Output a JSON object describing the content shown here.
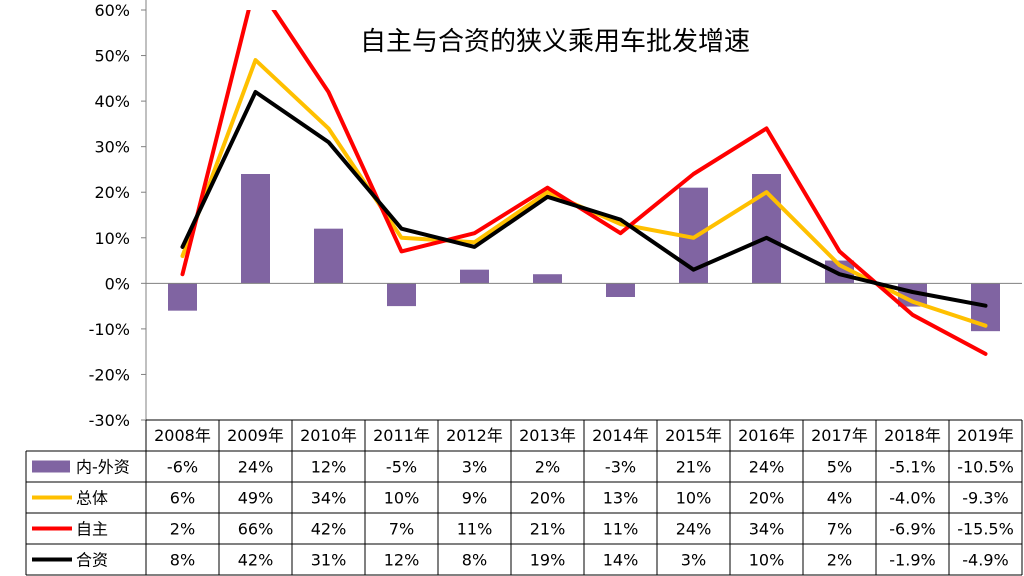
{
  "chart_data": {
    "type": "bar+line",
    "title": "自主与合资的狭义乘用车批发增速",
    "categories": [
      "2008年",
      "2009年",
      "2010年",
      "2011年",
      "2012年",
      "2013年",
      "2014年",
      "2015年",
      "2016年",
      "2017年",
      "2018年",
      "2019年"
    ],
    "ylim": [
      -30,
      60
    ],
    "yticks": [
      60,
      50,
      40,
      30,
      20,
      10,
      0,
      -10,
      -20,
      -30
    ],
    "ytick_labels": [
      "60%",
      "50%",
      "40%",
      "30%",
      "20%",
      "10%",
      "0%",
      "-10%",
      "-20%",
      "-30%"
    ],
    "grid": false,
    "legend_placement": "data-table",
    "series": [
      {
        "name": "内-外资",
        "kind": "bar",
        "color": "#8064A2",
        "values": [
          -6,
          24,
          12,
          -5,
          3,
          2,
          -3,
          21,
          24,
          5,
          -5.1,
          -10.5
        ],
        "labels": [
          "-6%",
          "24%",
          "12%",
          "-5%",
          "3%",
          "2%",
          "-3%",
          "21%",
          "24%",
          "5%",
          "-5.1%",
          "-10.5%"
        ]
      },
      {
        "name": "总体",
        "kind": "line",
        "color": "#FFC000",
        "values": [
          6,
          49,
          34,
          10,
          9,
          20,
          13,
          10,
          20,
          4,
          -4.0,
          -9.3
        ],
        "labels": [
          "6%",
          "49%",
          "34%",
          "10%",
          "9%",
          "20%",
          "13%",
          "10%",
          "20%",
          "4%",
          "-4.0%",
          "-9.3%"
        ]
      },
      {
        "name": "自主",
        "kind": "line",
        "color": "#FF0000",
        "values": [
          2,
          66,
          42,
          7,
          11,
          21,
          11,
          24,
          34,
          7,
          -6.9,
          -15.5
        ],
        "labels": [
          "2%",
          "66%",
          "42%",
          "7%",
          "11%",
          "21%",
          "11%",
          "24%",
          "34%",
          "7%",
          "-6.9%",
          "-15.5%"
        ]
      },
      {
        "name": "合资",
        "kind": "line",
        "color": "#000000",
        "values": [
          8,
          42,
          31,
          12,
          8,
          19,
          14,
          3,
          10,
          2,
          -1.9,
          -4.9
        ],
        "labels": [
          "8%",
          "42%",
          "31%",
          "12%",
          "8%",
          "19%",
          "14%",
          "3%",
          "10%",
          "2%",
          "-1.9%",
          "-4.9%"
        ]
      }
    ]
  }
}
